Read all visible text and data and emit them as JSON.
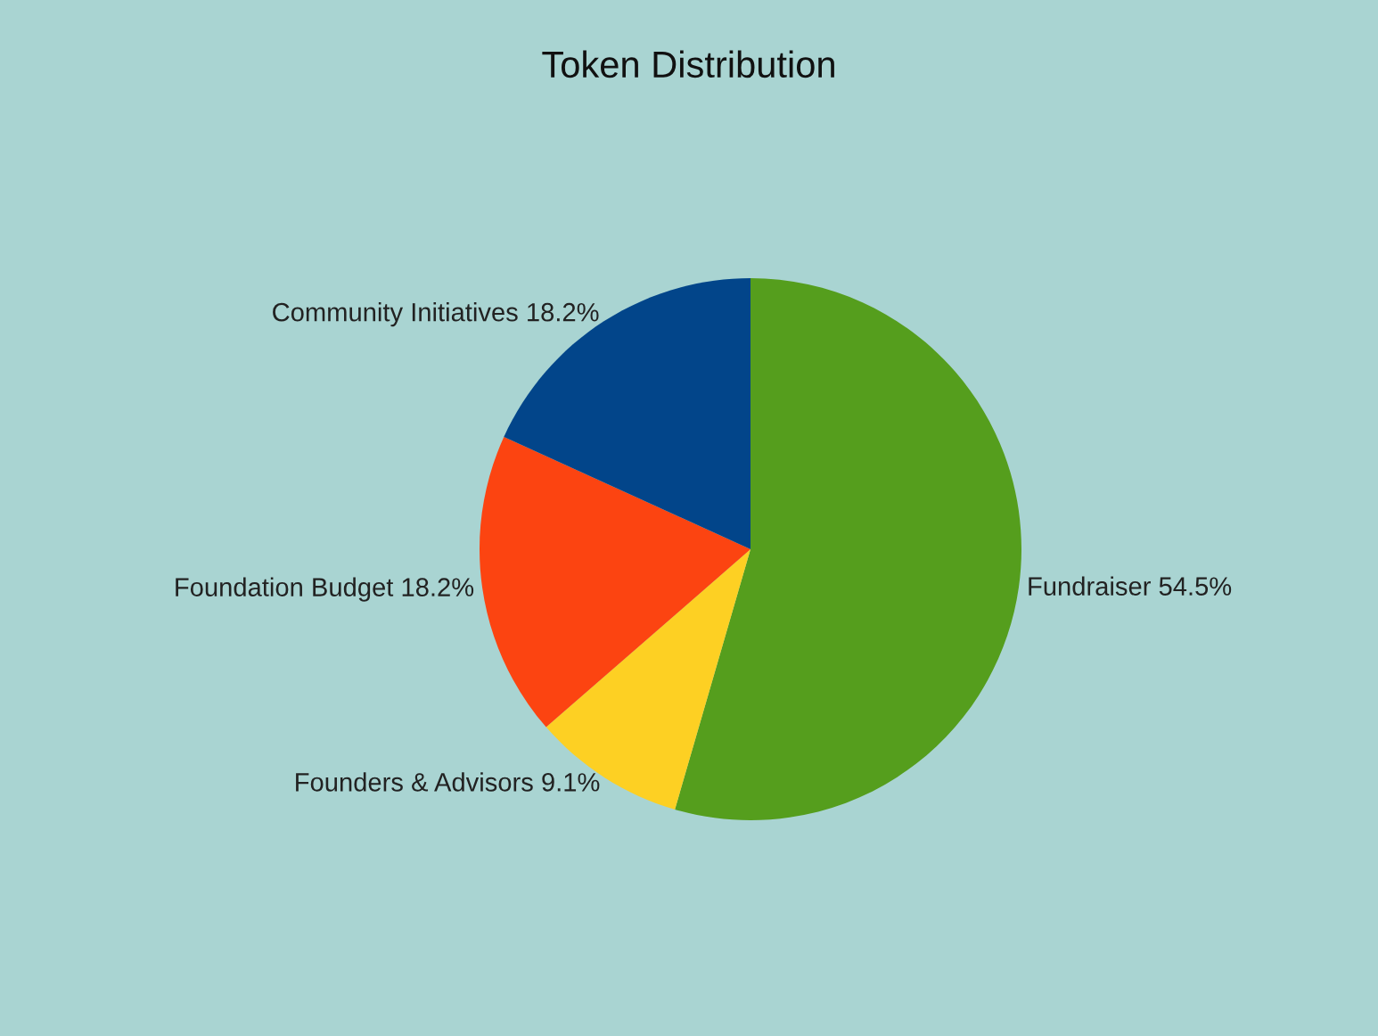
{
  "chart_data": {
    "type": "pie",
    "title": "Token Distribution",
    "categories": [
      "Fundraiser",
      "Founders & Advisors",
      "Foundation Budget",
      "Community Initiatives"
    ],
    "values": [
      54.5,
      9.1,
      18.2,
      18.2
    ],
    "value_labels": [
      "54.5%",
      "9.1%",
      "18.2%",
      "18.2%"
    ],
    "colors": [
      "#559e1d",
      "#fdd023",
      "#fc4411",
      "#02458a"
    ]
  }
}
